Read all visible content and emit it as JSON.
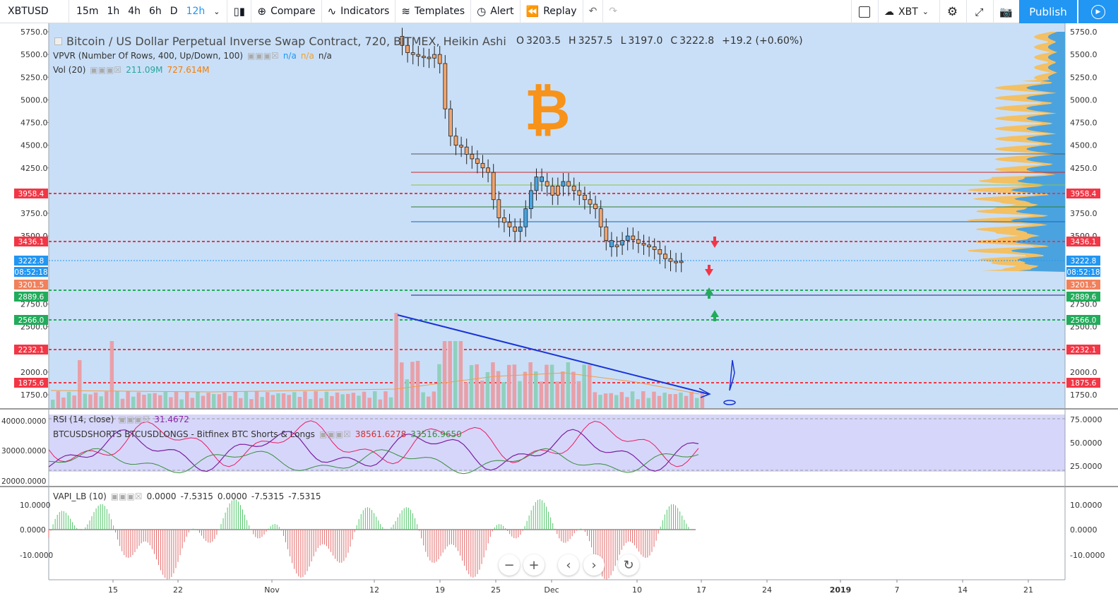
{
  "toolbar": {
    "symbol": "XBTUSD",
    "timeframes": [
      "15m",
      "1h",
      "4h",
      "6h",
      "D",
      "12h"
    ],
    "active_timeframe": "12h",
    "compare": "Compare",
    "indicators": "Indicators",
    "templates": "Templates",
    "alert": "Alert",
    "replay": "Replay",
    "currency": "XBT",
    "publish": "Publish"
  },
  "legend": {
    "title": "Bitcoin / US Dollar Perpetual Inverse Swap Contract, 720, BITMEX, Heikin Ashi",
    "o_label": "O",
    "o": "3203.5",
    "h_label": "H",
    "h": "3257.5",
    "l_label": "L",
    "l": "3197.0",
    "c_label": "C",
    "c": "3222.8",
    "change": "+19.2 (+0.60%)",
    "vpvr": "VPVR (Number Of Rows, 400, Up/Down, 100)",
    "vpvr_vals": [
      "n/a",
      "n/a",
      "n/a"
    ],
    "vol": "Vol (20)",
    "vol_v1": "211.09M",
    "vol_v2": "727.614M",
    "rsi": "RSI (14, close)",
    "rsi_val": "31.4672",
    "shorts": "BTCUSDSHORTS BTCUSDLONGS - Bitfinex BTC Shorts & Longs",
    "shorts_v1": "38561.6278",
    "shorts_v2": "33516.9650",
    "vapi": "VAPI_LB (10)",
    "vapi_vals": [
      "0.0000",
      "-7.5315",
      "0.0000",
      "-7.5315",
      "-7.5315"
    ]
  },
  "colors": {
    "accent": "#2196f3",
    "up": "#53b987",
    "down": "#eb4d5c",
    "candle_down": "#f0a46e",
    "candle_up": "#4aa3df",
    "bg": "#c9dff7"
  },
  "price_axis": [
    "5750.0",
    "5500.0",
    "5250.0",
    "5000.0",
    "4750.0",
    "4500.0",
    "4250.0",
    "3750.0",
    "3500.0",
    "2750.0",
    "2500.0",
    "2000.0",
    "1750.0"
  ],
  "price_labels": [
    {
      "text": "3958.4",
      "color": "#f23645"
    },
    {
      "text": "3436.1",
      "color": "#f23645"
    },
    {
      "text": "3222.8",
      "color": "#2196f3"
    },
    {
      "text": "08:52:18",
      "color": "#2196f3"
    },
    {
      "text": "3201.5",
      "color": "#f0815c"
    },
    {
      "text": "2889.6",
      "color": "#22ab5b"
    },
    {
      "text": "2566.0",
      "color": "#22ab5b"
    },
    {
      "text": "2232.1",
      "color": "#f23645"
    },
    {
      "text": "1875.6",
      "color": "#f23645"
    }
  ],
  "rsi_axis": [
    "75.0000",
    "50.0000",
    "25.0000"
  ],
  "shorts_axis": [
    "40000.0000",
    "30000.0000",
    "20000.0000"
  ],
  "vapi_axis": [
    "10.0000",
    "0.0000",
    "-10.0000"
  ],
  "time_axis": [
    "15",
    "22",
    "Nov",
    "12",
    "19",
    "25",
    "Dec",
    "10",
    "17",
    "24",
    "2019",
    "7",
    "14",
    "21"
  ]
}
